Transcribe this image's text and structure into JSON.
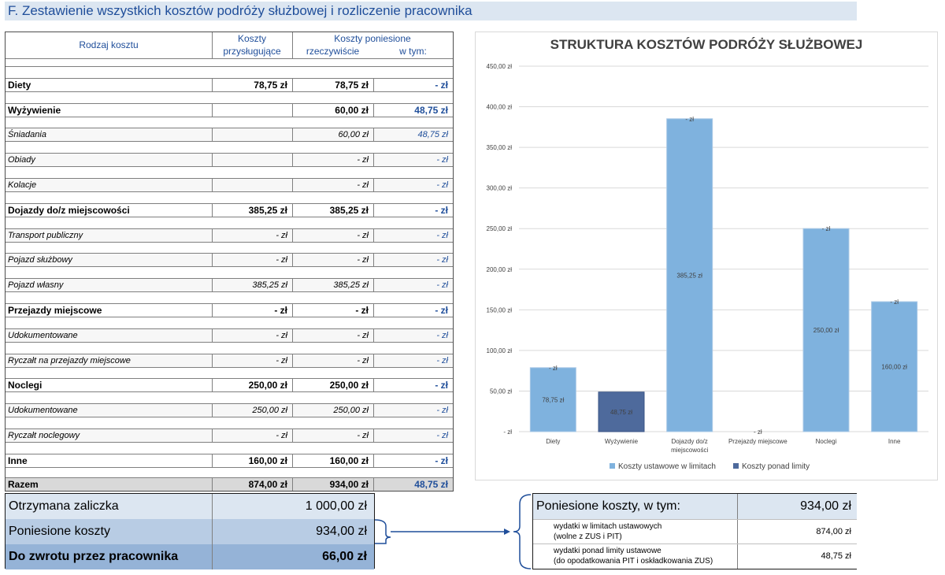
{
  "section_title": "F. Zestawienie wszystkich kosztów podróży służbowej i rozliczenie pracownika",
  "table": {
    "headers": {
      "type": "Rodzaj kosztu",
      "entitled_line1": "Koszty",
      "entitled_line2": "przysługujące",
      "incurred": "Koszty poniesione",
      "actual": "rzeczywiście",
      "of_which": "w tym:"
    },
    "rows": [
      {
        "label": "Diety",
        "entitled": "78,75 zł",
        "actual": "78,75 zł",
        "over": "-   zł",
        "kind": "bold"
      },
      {
        "label": "Wyżywienie",
        "entitled": "",
        "actual": "60,00 zł",
        "over": "48,75 zł",
        "kind": "bold"
      },
      {
        "label": "Śniadania",
        "entitled": "",
        "actual": "60,00 zł",
        "over": "48,75 zł",
        "kind": "sub"
      },
      {
        "label": "Obiady",
        "entitled": "",
        "actual": "-   zł",
        "over": "-   zł",
        "kind": "sub"
      },
      {
        "label": "Kolacje",
        "entitled": "",
        "actual": "-   zł",
        "over": "-   zł",
        "kind": "sub"
      },
      {
        "label": "Dojazdy do/z miejscowości",
        "entitled": "385,25 zł",
        "actual": "385,25 zł",
        "over": "-   zł",
        "kind": "bold"
      },
      {
        "label": "Transport publiczny",
        "entitled": "-   zł",
        "actual": "-   zł",
        "over": "-   zł",
        "kind": "sub"
      },
      {
        "label": "Pojazd służbowy",
        "entitled": "-   zł",
        "actual": "-   zł",
        "over": "-   zł",
        "kind": "sub"
      },
      {
        "label": "Pojazd własny",
        "entitled": "385,25 zł",
        "actual": "385,25 zł",
        "over": "-   zł",
        "kind": "sub"
      },
      {
        "label": "Przejazdy miejscowe",
        "entitled": "-   zł",
        "actual": "-   zł",
        "over": "-   zł",
        "kind": "bold"
      },
      {
        "label": "Udokumentowane",
        "entitled": "-   zł",
        "actual": "-   zł",
        "over": "-   zł",
        "kind": "sub"
      },
      {
        "label": "Ryczałt na przejazdy miejscowe",
        "entitled": "-   zł",
        "actual": "-   zł",
        "over": "-   zł",
        "kind": "sub"
      },
      {
        "label": "Noclegi",
        "entitled": "250,00 zł",
        "actual": "250,00 zł",
        "over": "-   zł",
        "kind": "bold"
      },
      {
        "label": "Udokumentowane",
        "entitled": "250,00 zł",
        "actual": "250,00 zł",
        "over": "-   zł",
        "kind": "sub"
      },
      {
        "label": "Ryczałt noclegowy",
        "entitled": "-   zł",
        "actual": "-   zł",
        "over": "-   zł",
        "kind": "sub"
      },
      {
        "label": "Inne",
        "entitled": "160,00 zł",
        "actual": "160,00 zł",
        "over": "-   zł",
        "kind": "bold"
      },
      {
        "label": "Razem",
        "entitled": "874,00 zł",
        "actual": "934,00 zł",
        "over": "48,75 zł",
        "kind": "bold total"
      }
    ]
  },
  "chart_data": {
    "type": "bar",
    "stacked": true,
    "title": "STRUKTURA KOSZTÓW PODRÓŻY SŁUŻBOWEJ",
    "categories": [
      "Diety",
      "Wyżywienie",
      "Dojazdy do/z miejscowości",
      "Przejazdy miejscowe",
      "Noclegi",
      "Inne"
    ],
    "series": [
      {
        "name": "Koszty ustawowe w limitach",
        "color": "#7fb2de",
        "values": [
          78.75,
          0,
          385.25,
          0,
          250,
          160
        ],
        "labels": [
          "78,75 zł",
          "",
          "385,25 zł",
          "",
          "250,00 zł",
          "160,00 zł"
        ]
      },
      {
        "name": "Koszty ponad limity",
        "color": "#4e6a9c",
        "values": [
          0,
          48.75,
          0,
          0,
          0,
          0
        ],
        "labels": [
          "-   zł",
          "48,75 zł",
          "-   zł",
          "-   zł",
          "-   zł",
          "-   zł"
        ]
      }
    ],
    "ylim": [
      0,
      450
    ],
    "yticks": [
      0,
      50,
      100,
      150,
      200,
      250,
      300,
      350,
      400,
      450
    ],
    "ytick_labels": [
      "-   zł",
      "50,00 zł",
      "100,00 zł",
      "150,00 zł",
      "200,00 zł",
      "250,00 zł",
      "300,00 zł",
      "350,00 zł",
      "400,00 zł",
      "450,00 zł"
    ],
    "grid": true,
    "legend": "bottom"
  },
  "summary": {
    "rows": [
      {
        "label": "Otrzymana zaliczka",
        "value": "1 000,00 zł"
      },
      {
        "label": "Poniesione koszty",
        "value": "934,00 zł"
      },
      {
        "label": "Do zwrotu przez pracownika",
        "value": "66,00 zł"
      }
    ],
    "colors": [
      "#dce6f1",
      "#b8cce4",
      "#95b3d7"
    ]
  },
  "breakdown": {
    "header_label": "Poniesione koszty, w tym:",
    "header_value": "934,00 zł",
    "items": [
      {
        "line1": "wydatki w limitach ustawowych",
        "line2": "(wolne z ZUS i PIT)",
        "value": "874,00 zł"
      },
      {
        "line1": "wydatki ponad limity ustawowe",
        "line2": "(do opodatkowania PIT i oskładkowania ZUS)",
        "value": "48,75 zł"
      }
    ]
  }
}
